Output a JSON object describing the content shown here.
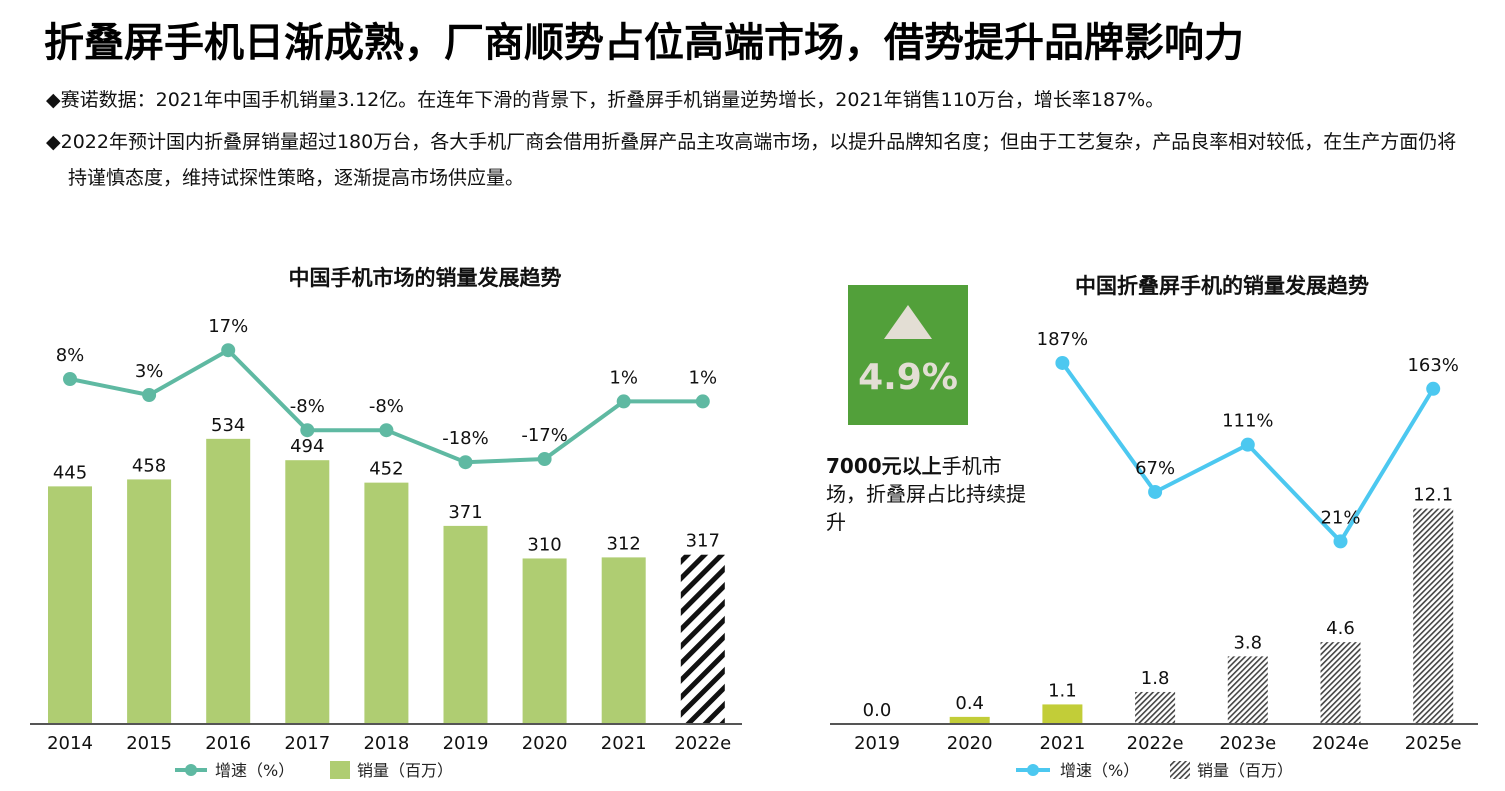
{
  "title": "折叠屏手机日渐成熟，厂商顺势占位高端市场，借势提升品牌影响力",
  "bullets": [
    "◆赛诺数据：2021年中国手机销量3.12亿。在连年下滑的背景下，折叠屏手机销量逆势增长，2021年销售110万台，增长率187%。",
    "◆2022年预计国内折叠屏销量超过180万台，各大手机厂商会借用折叠屏产品主攻高端市场，以提升品牌知名度；但由于工艺复杂，产品良率相对较低，在生产方面仍将持谨慎态度，维持试探性策略，逐渐提高市场供应量。"
  ],
  "kpi": {
    "value": "4.9%",
    "icon": "triangle-up-icon",
    "color": "#52a03a"
  },
  "note": {
    "bold": "7000元以上",
    "rest": "手机市场，折叠屏占比持续提升"
  },
  "chart_data": [
    {
      "type": "bar+line",
      "title": "中国手机市场的销量发展趋势",
      "categories": [
        "2014",
        "2015",
        "2016",
        "2017",
        "2018",
        "2019",
        "2020",
        "2021",
        "2022e"
      ],
      "series": [
        {
          "name": "销量（百万）",
          "type": "bar",
          "values": [
            445,
            458,
            534,
            494,
            452,
            371,
            310,
            312,
            317
          ],
          "labels": [
            "445",
            "458",
            "534",
            "494",
            "452",
            "371",
            "310",
            "312",
            "317"
          ],
          "color": "#afcd72",
          "estimated_from": "2022e",
          "estimated_style": "black-diagonal-stripes"
        },
        {
          "name": "增速（%）",
          "type": "line",
          "values": [
            8,
            3,
            17,
            -8,
            -8,
            -18,
            -17,
            1,
            1
          ],
          "labels": [
            "8%",
            "3%",
            "17%",
            "-8%",
            "-8%",
            "-18%",
            "-17%",
            "1%",
            "1%"
          ],
          "color": "#5fb9a2"
        }
      ],
      "legend": "bottom"
    },
    {
      "type": "bar+line",
      "title": "中国折叠屏手机的销量发展趋势",
      "categories": [
        "2019",
        "2020",
        "2021",
        "2022e",
        "2023e",
        "2024e",
        "2025e"
      ],
      "series": [
        {
          "name": "销量（百万）",
          "type": "bar",
          "values": [
            0.0,
            0.4,
            1.1,
            1.8,
            3.8,
            4.6,
            12.1
          ],
          "labels": [
            "0.0",
            "0.4",
            "1.1",
            "1.8",
            "3.8",
            "4.6",
            "12.1"
          ],
          "color": "#c2cd38",
          "estimated_from": "2022e",
          "estimated_style": "grey-hatch"
        },
        {
          "name": "增速（%）",
          "type": "line",
          "values": [
            null,
            null,
            187,
            67,
            111,
            21,
            163
          ],
          "labels": [
            "",
            "",
            "187%",
            "67%",
            "111%",
            "21%",
            "163%"
          ],
          "color": "#4cc8f0"
        }
      ],
      "legend": "bottom"
    }
  ]
}
